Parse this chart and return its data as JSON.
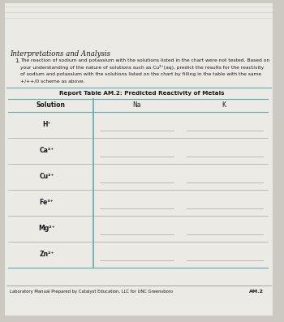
{
  "title": "Interpretations and Analysis",
  "body_lines": [
    "The reaction of sodium and potassium with the solutions listed in the chart were not tested. Based on",
    "your understanding of the nature of solutions such as Cu²⁺(aq), predict the results for the reactivity",
    "of sodium and potassium with the solutions listed on the chart by filling in the table with the same",
    "+/++/0 scheme as above."
  ],
  "table_title": "Report Table AM.2: Predicted Reactivity of Metals",
  "col_headers": [
    "Solution",
    "Na",
    "K"
  ],
  "row_labels": [
    "H⁺",
    "Ca²⁺",
    "Cu²⁺",
    "Fe³⁺",
    "Mg²⁺",
    "Zn²⁺"
  ],
  "footer": "Laboratory Manual Prepared by Catalyst Education, LLC for UNC Greensboro",
  "footer_right": "AM.2",
  "bg_color": "#ccc9c2",
  "page_color": "#eceae5",
  "text_color": "#1a1a1a",
  "line_color": "#888880",
  "teal_color": "#5aacb0",
  "title_color": "#2a2a2a"
}
